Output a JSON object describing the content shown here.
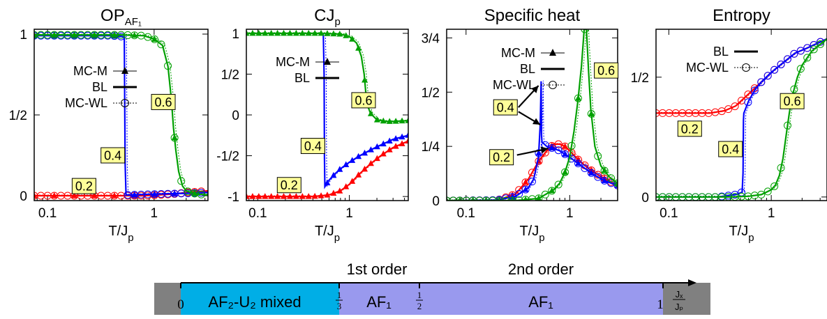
{
  "chart_data": [
    {
      "type": "line",
      "title": "OP",
      "title_sub": "AF₁",
      "xlabel": "T/J",
      "xlabel_sub": "p",
      "xscale": "log",
      "xlim": [
        0.075,
        3.2
      ],
      "ylim": [
        -0.03,
        1.03
      ],
      "xticks": [
        {
          "v": 0.1,
          "label": "0.1"
        },
        {
          "v": 1,
          "label": "1"
        }
      ],
      "yticks": [
        {
          "v": 0,
          "label": "0"
        },
        {
          "v": 0.5,
          "label": "1/2"
        },
        {
          "v": 1,
          "label": "1"
        }
      ],
      "legend": [
        {
          "label": "MC-M",
          "style": "MC-M"
        },
        {
          "label": "BL",
          "style": "BL"
        },
        {
          "label": "MC-WL",
          "style": "MC-WL"
        }
      ],
      "annotations": [
        {
          "text": "0.6",
          "x": 1.22,
          "y": 0.58
        },
        {
          "text": "0.4",
          "x": 0.41,
          "y": 0.25
        },
        {
          "text": "0.2",
          "x": 0.22,
          "y": 0.06
        }
      ],
      "series": [
        {
          "label": "0.2",
          "color": "#ff0000",
          "x": [
            0.075,
            0.1,
            0.15,
            0.2,
            0.3,
            0.5,
            0.8,
            1.0,
            1.5,
            2.0,
            3.2
          ],
          "y": [
            0,
            0,
            0,
            0,
            0,
            0,
            0,
            0.003,
            0.01,
            0.02,
            0.03
          ]
        },
        {
          "label": "0.4",
          "color": "#0000ff",
          "x": [
            0.075,
            0.1,
            0.2,
            0.4,
            0.5,
            0.525,
            0.535,
            0.545,
            0.6,
            1.0,
            2.0,
            3.2
          ],
          "y": [
            0.99,
            0.99,
            0.99,
            0.99,
            0.985,
            0.98,
            0.2,
            0.005,
            0.005,
            0.01,
            0.015,
            0.02
          ]
        },
        {
          "label": "0.6",
          "color": "#00a000",
          "x": [
            0.075,
            0.2,
            0.5,
            0.8,
            1.0,
            1.2,
            1.35,
            1.45,
            1.52,
            1.6,
            1.7,
            1.85,
            2.0,
            2.5,
            3.2
          ],
          "y": [
            0.995,
            0.995,
            0.995,
            0.99,
            0.97,
            0.93,
            0.8,
            0.6,
            0.42,
            0.28,
            0.15,
            0.06,
            0.03,
            0.01,
            0.005
          ]
        }
      ]
    },
    {
      "type": "line",
      "title": "CJ",
      "title_sub": "p",
      "xlabel": "T/J",
      "xlabel_sub": "p",
      "xscale": "log",
      "xlim": [
        0.075,
        4.4
      ],
      "ylim": [
        -1.05,
        1.05
      ],
      "xticks": [
        {
          "v": 0.1,
          "label": "0.1"
        },
        {
          "v": 1,
          "label": "1"
        }
      ],
      "yticks": [
        {
          "v": -1,
          "label": "-1"
        },
        {
          "v": -0.5,
          "label": "-1/2"
        },
        {
          "v": 0,
          "label": "0"
        },
        {
          "v": 0.5,
          "label": "1/2"
        },
        {
          "v": 1,
          "label": "1"
        }
      ],
      "legend": [
        {
          "label": "MC-M",
          "style": "MC-M"
        },
        {
          "label": "BL",
          "style": "BL"
        }
      ],
      "annotations": [
        {
          "text": "0.6",
          "x": 1.43,
          "y": 0.18
        },
        {
          "text": "0.4",
          "x": 0.4,
          "y": -0.38
        },
        {
          "text": "0.2",
          "x": 0.22,
          "y": -0.86
        }
      ],
      "series": [
        {
          "label": "0.2",
          "color": "#ff0000",
          "x": [
            0.075,
            0.2,
            0.4,
            0.5,
            0.6,
            0.8,
            1.0,
            1.3,
            1.7,
            2.2,
            3.0,
            4.4
          ],
          "y": [
            -1,
            -1,
            -1,
            -0.99,
            -0.98,
            -0.93,
            -0.85,
            -0.72,
            -0.6,
            -0.5,
            -0.4,
            -0.32
          ]
        },
        {
          "label": "0.4",
          "color": "#0000ff",
          "x": [
            0.5,
            0.52,
            0.53,
            0.535,
            0.54,
            0.6,
            0.7,
            0.8,
            1.0,
            1.3,
            1.7,
            2.2,
            3.0,
            4.4
          ],
          "y": [
            1,
            0.98,
            0.5,
            -0.5,
            -0.88,
            -0.8,
            -0.72,
            -0.66,
            -0.58,
            -0.5,
            -0.43,
            -0.37,
            -0.3,
            -0.25
          ]
        },
        {
          "label": "0.6",
          "color": "#00a000",
          "x": [
            0.075,
            0.2,
            0.5,
            0.8,
            1.0,
            1.2,
            1.35,
            1.45,
            1.52,
            1.6,
            1.7,
            2.0,
            2.5,
            3.0,
            4.4
          ],
          "y": [
            1,
            1,
            1,
            0.99,
            0.96,
            0.88,
            0.72,
            0.5,
            0.25,
            0.1,
            0.02,
            -0.06,
            -0.08,
            -0.08,
            -0.07
          ]
        }
      ]
    },
    {
      "type": "line",
      "title": "Specific heat",
      "xlabel": "T/J",
      "xlabel_sub": "p",
      "xscale": "log",
      "xlim": [
        0.065,
        2.9
      ],
      "ylim": [
        0,
        0.79
      ],
      "xticks": [
        {
          "v": 0.1,
          "label": "0.1"
        },
        {
          "v": 1,
          "label": "1"
        }
      ],
      "yticks": [
        {
          "v": 0,
          "label": "0"
        },
        {
          "v": 0.25,
          "label": "1/4"
        },
        {
          "v": 0.5,
          "label": "1/2"
        },
        {
          "v": 0.75,
          "label": "3/4"
        }
      ],
      "legend": [
        {
          "label": "MC-M",
          "style": "MC-M"
        },
        {
          "label": "BL",
          "style": "BL"
        },
        {
          "label": "MC-WL",
          "style": "MC-WL"
        }
      ],
      "annotations": [
        {
          "text": "0.6",
          "x": 2.25,
          "y": 0.6
        },
        {
          "text": "0.4",
          "x": 0.24,
          "y": 0.43
        },
        {
          "text": "0.2",
          "x": 0.22,
          "y": 0.2
        }
      ],
      "arrows": [
        {
          "from": [
            0.32,
            0.43
          ],
          "to": [
            0.5,
            0.53
          ]
        },
        {
          "from": [
            0.32,
            0.41
          ],
          "to": [
            0.52,
            0.35
          ]
        },
        {
          "from": [
            0.31,
            0.21
          ],
          "to": [
            0.62,
            0.24
          ]
        }
      ],
      "series": [
        {
          "label": "0.2",
          "color": "#ff0000",
          "x": [
            0.065,
            0.2,
            0.3,
            0.4,
            0.5,
            0.6,
            0.7,
            0.8,
            0.9,
            1.0,
            1.2,
            1.5,
            2.0,
            2.9
          ],
          "y": [
            0,
            0.002,
            0.03,
            0.1,
            0.18,
            0.23,
            0.26,
            0.26,
            0.25,
            0.23,
            0.19,
            0.15,
            0.11,
            0.07
          ]
        },
        {
          "label": "0.4",
          "color": "#0000ff",
          "x": [
            0.065,
            0.2,
            0.3,
            0.4,
            0.45,
            0.5,
            0.52,
            0.53,
            0.535,
            0.54,
            0.6,
            0.7,
            0.8,
            1.0,
            1.3,
            1.7,
            2.2,
            2.9
          ],
          "y": [
            0,
            0.002,
            0.02,
            0.06,
            0.1,
            0.2,
            0.35,
            0.55,
            0.3,
            0.27,
            0.25,
            0.24,
            0.23,
            0.2,
            0.16,
            0.12,
            0.09,
            0.07
          ]
        },
        {
          "label": "0.6",
          "color": "#00a000",
          "x": [
            0.065,
            0.3,
            0.5,
            0.7,
            0.8,
            0.9,
            1.0,
            1.1,
            1.2,
            1.3,
            1.38,
            1.45,
            1.52,
            1.6,
            1.75,
            2.0,
            2.4,
            2.9
          ],
          "y": [
            0,
            0,
            0.01,
            0.05,
            0.08,
            0.13,
            0.2,
            0.32,
            0.46,
            0.62,
            0.79,
            0.79,
            0.6,
            0.42,
            0.25,
            0.16,
            0.11,
            0.08
          ]
        }
      ]
    },
    {
      "type": "line",
      "title": "Entropy",
      "xlabel": "T/J",
      "xlabel_sub": "p",
      "xscale": "log",
      "xlim": [
        0.075,
        3.5
      ],
      "ylim": [
        -0.015,
        0.7
      ],
      "xticks": [
        {
          "v": 0.1,
          "label": "0.1"
        },
        {
          "v": 1,
          "label": "1"
        }
      ],
      "yticks": [
        {
          "v": 0,
          "label": "0"
        },
        {
          "v": 0.5,
          "label": "1/2"
        }
      ],
      "legend": [
        {
          "label": "BL",
          "style": "BL"
        },
        {
          "label": "MC-WL",
          "style": "MC-WL"
        }
      ],
      "annotations": [
        {
          "text": "0.2",
          "x": 0.16,
          "y": 0.285
        },
        {
          "text": "0.4",
          "x": 0.4,
          "y": 0.2
        },
        {
          "text": "0.6",
          "x": 1.6,
          "y": 0.4
        }
      ],
      "series": [
        {
          "label": "0.2",
          "color": "#ff0000",
          "x": [
            0.075,
            0.15,
            0.25,
            0.35,
            0.45,
            0.6,
            0.8,
            1.0,
            1.3,
            1.7,
            2.2,
            3.5
          ],
          "y": [
            0.35,
            0.35,
            0.35,
            0.36,
            0.38,
            0.43,
            0.48,
            0.52,
            0.56,
            0.6,
            0.62,
            0.66
          ]
        },
        {
          "label": "0.4",
          "color": "#0000ff",
          "x": [
            0.075,
            0.3,
            0.45,
            0.52,
            0.53,
            0.535,
            0.54,
            0.6,
            0.7,
            0.8,
            1.0,
            1.3,
            1.7,
            2.2,
            3.5
          ],
          "y": [
            0,
            0,
            0.01,
            0.02,
            0.1,
            0.32,
            0.35,
            0.4,
            0.45,
            0.48,
            0.52,
            0.56,
            0.6,
            0.62,
            0.66
          ]
        },
        {
          "label": "0.6",
          "color": "#00a000",
          "x": [
            0.075,
            0.4,
            0.6,
            0.8,
            1.0,
            1.1,
            1.2,
            1.3,
            1.4,
            1.5,
            1.6,
            1.8,
            2.0,
            2.5,
            3.5
          ],
          "y": [
            0,
            0,
            0.003,
            0.01,
            0.03,
            0.05,
            0.09,
            0.16,
            0.26,
            0.35,
            0.42,
            0.5,
            0.55,
            0.61,
            0.66
          ]
        }
      ]
    }
  ],
  "phase_diagram": {
    "labels": {
      "first_order": "1st order",
      "second_order": "2nd order",
      "mixed": "AF₂-U₂ mixed",
      "af1_left": "AF₁",
      "af1_right": "AF₁",
      "tick_0": "0",
      "tick_third_num": "1",
      "tick_third_den": "3",
      "tick_half_num": "1",
      "tick_half_den": "2",
      "tick_1": "1",
      "axis_num": "Jₓ",
      "axis_den": "Jₚ"
    },
    "boundaries": [
      0,
      0.3333,
      0.5,
      1
    ],
    "colors": {
      "gray": "#808080",
      "mixed": "#00aee6",
      "af1": "#9999ee"
    }
  },
  "colors": {
    "red": "#ff0000",
    "blue": "#0000ff",
    "green": "#00a000",
    "label_bg": "#ffff99"
  }
}
